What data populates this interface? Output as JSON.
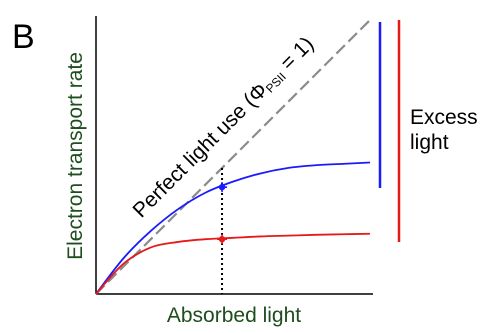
{
  "panel": {
    "letter": "B"
  },
  "chart_data": {
    "type": "line",
    "title": "",
    "xlabel": "Absorbed light",
    "ylabel": "Electron transport rate",
    "xlim": [
      0,
      1
    ],
    "ylim": [
      0,
      1
    ],
    "grid": false,
    "legend": "none",
    "reference_line": {
      "label_main": "Perfect light use (Φ",
      "label_sub": "PSII",
      "label_tail": " = 1)",
      "color": "#8c8c8c",
      "dashed": true,
      "points": [
        [
          0,
          0
        ],
        [
          1,
          1
        ]
      ]
    },
    "series": [
      {
        "color": "#1a1aff",
        "x": [
          0,
          0.1,
          0.2,
          0.3,
          0.4,
          0.5,
          0.6,
          0.7,
          0.8,
          0.9,
          1.0
        ],
        "y": [
          0,
          0.13,
          0.23,
          0.31,
          0.37,
          0.41,
          0.44,
          0.46,
          0.47,
          0.475,
          0.48
        ]
      },
      {
        "color": "#e61919",
        "x": [
          0,
          0.1,
          0.2,
          0.3,
          0.4,
          0.5,
          0.6,
          0.7,
          0.8,
          0.9,
          1.0
        ],
        "y": [
          0,
          0.11,
          0.17,
          0.19,
          0.2,
          0.205,
          0.21,
          0.213,
          0.216,
          0.218,
          0.22
        ]
      }
    ],
    "marker_x": 0.46,
    "markers": [
      {
        "series": 0,
        "x": 0.46,
        "y": 0.39,
        "color": "#1a1aff"
      },
      {
        "series": 1,
        "x": 0.46,
        "y": 0.2,
        "color": "#e61919"
      }
    ],
    "bracket_label_line1": "Excess",
    "bracket_label_line2": "light",
    "bracket_colors": {
      "blue": "#1a1aff",
      "red": "#e61919"
    }
  }
}
